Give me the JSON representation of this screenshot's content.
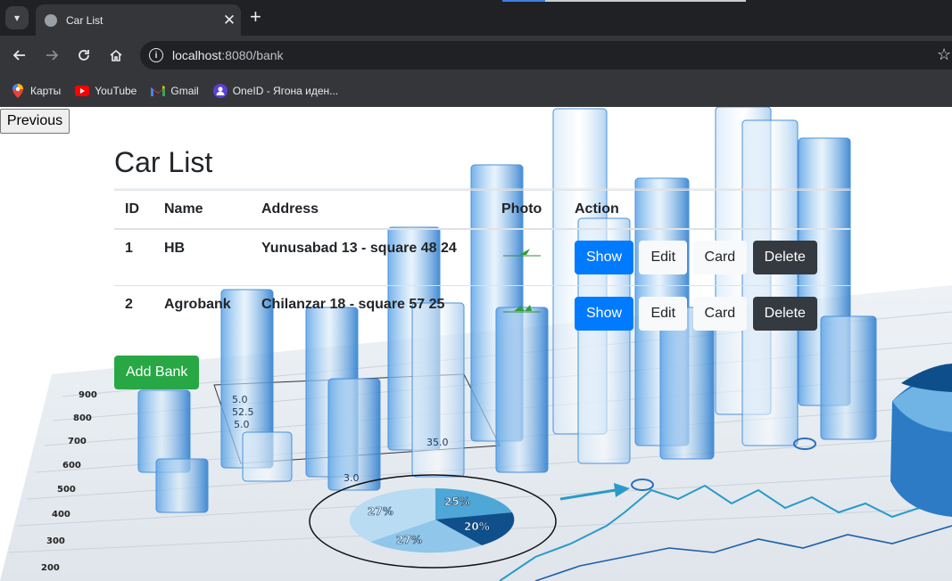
{
  "browser": {
    "tab_title": "Car List",
    "new_tab_symbol": "+",
    "url_host": "localhost",
    "url_path": ":8080/bank",
    "bookmarks": [
      {
        "label": "Карты",
        "icon": "maps-pin-icon"
      },
      {
        "label": "YouTube",
        "icon": "youtube-icon"
      },
      {
        "label": "Gmail",
        "icon": "gmail-icon"
      },
      {
        "label": "OneID - Ягона иден...",
        "icon": "oneid-icon"
      }
    ]
  },
  "page": {
    "previous_label": "Previous",
    "title": "Car List",
    "columns": {
      "id": "ID",
      "name": "Name",
      "address": "Address",
      "photo": "Photo",
      "action": "Action"
    },
    "rows": [
      {
        "id": "1",
        "name": "HB",
        "address": "Yunusabad 13 - square 48 24"
      },
      {
        "id": "2",
        "name": "Agrobank",
        "address": "Chilanzar 18 - square 57 25"
      }
    ],
    "actions": {
      "show": "Show",
      "edit": "Edit",
      "card": "Card",
      "delete": "Delete"
    },
    "add_label": "Add Bank"
  },
  "background_art": {
    "axis_labels": [
      "900",
      "800",
      "700",
      "600",
      "500",
      "400",
      "300",
      "200"
    ],
    "pie_labels": [
      "25%",
      "27%",
      "20%",
      "27%"
    ],
    "column_labels": [
      "5.0",
      "52.5",
      "5.0",
      "35.0",
      "3.0"
    ]
  },
  "colors": {
    "primary": "#007bff",
    "dark": "#343a40",
    "success": "#28a745",
    "light": "#f8f9fa"
  }
}
